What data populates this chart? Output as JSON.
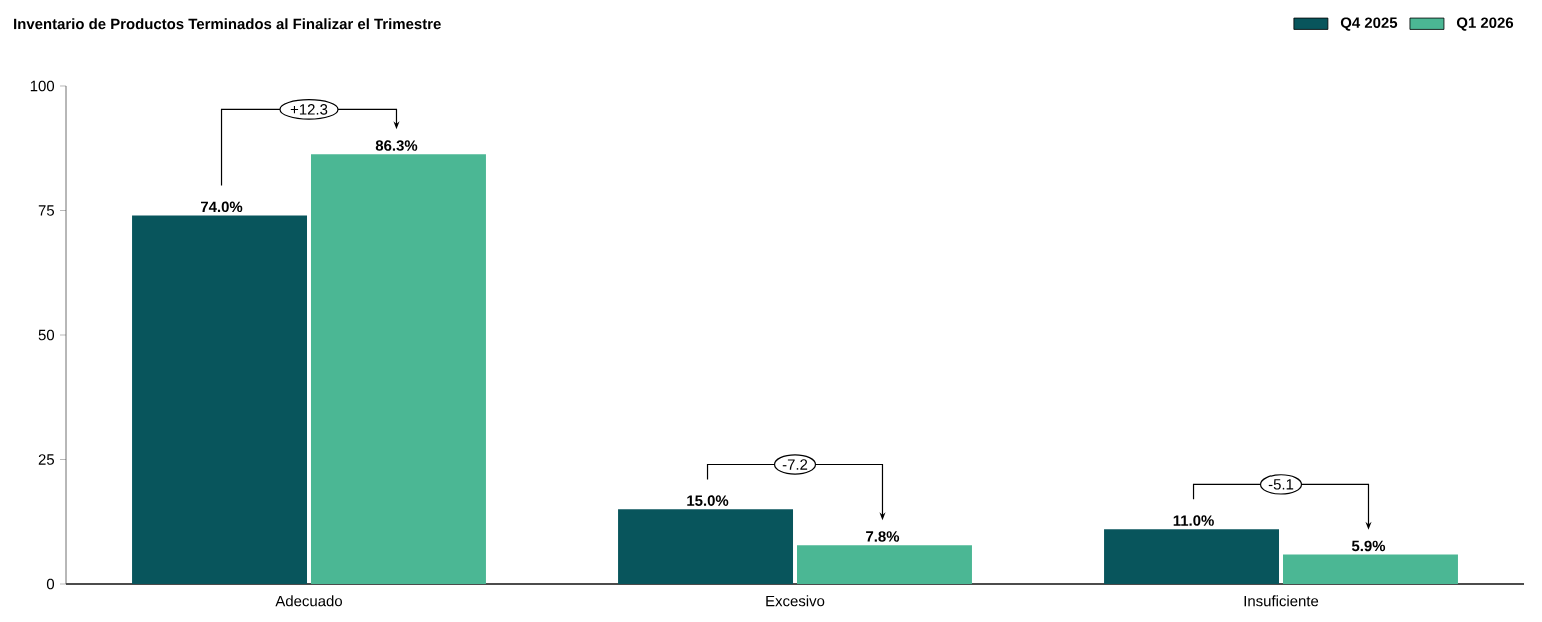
{
  "chart_data": {
    "type": "bar",
    "title": "Inventario de Productos Terminados al Finalizar el Trimestre",
    "categories": [
      "Adecuado",
      "Excesivo",
      "Insuficiente"
    ],
    "series": [
      {
        "name": "Q4 2025",
        "color": "#08555c",
        "values": [
          74.0,
          15.0,
          11.0
        ],
        "value_labels": [
          "74.0%",
          "15.0%",
          "11.0%"
        ]
      },
      {
        "name": "Q1 2026",
        "color": "#4bb794",
        "values": [
          86.3,
          7.8,
          5.9
        ],
        "value_labels": [
          "86.3%",
          "7.8%",
          "5.9%"
        ]
      }
    ],
    "ylim": [
      0,
      100
    ],
    "yticks": [
      0,
      25,
      50,
      75,
      100
    ],
    "legend": "top right",
    "grid": false,
    "annotations": [
      "+12.3",
      "-7.2",
      "-5.1"
    ]
  }
}
